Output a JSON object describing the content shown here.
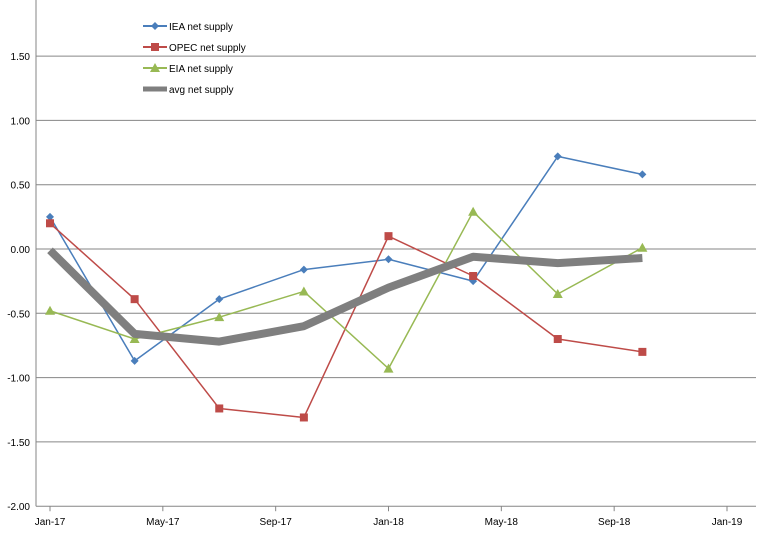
{
  "chart_data": {
    "type": "line",
    "title": "",
    "xlabel": "",
    "ylabel": "",
    "ylim": [
      -2.0,
      2.0
    ],
    "y_ticks": [
      "-2.00",
      "-1.50",
      "-1.00",
      "-0.50",
      "0.00",
      "0.50",
      "1.00",
      "1.50"
    ],
    "y_tick_values": [
      -2.0,
      -1.5,
      -1.0,
      -0.5,
      0.0,
      0.5,
      1.0,
      1.5
    ],
    "x_ticks": [
      "Jan-17",
      "May-17",
      "Sep-17",
      "Jan-18",
      "May-18",
      "Sep-18",
      "Jan-19"
    ],
    "x_tick_months": [
      0,
      4,
      8,
      12,
      16,
      20,
      24
    ],
    "x_months": [
      0,
      3,
      6,
      9,
      12,
      15,
      18,
      21
    ],
    "x": [
      "Jan-17",
      "Apr-17",
      "Jul-17",
      "Oct-17",
      "Jan-18",
      "Apr-18",
      "Jul-18",
      "Oct-18"
    ],
    "grid": true,
    "legend_position": "top-left",
    "series": [
      {
        "name": "IEA net supply",
        "color": "#4a7ebb",
        "marker": "diamond",
        "width": 1.5,
        "values": [
          0.25,
          -0.87,
          -0.39,
          -0.16,
          -0.08,
          -0.25,
          0.72,
          0.58
        ]
      },
      {
        "name": "OPEC net supply",
        "color": "#be4b48",
        "marker": "square",
        "width": 1.5,
        "values": [
          0.2,
          -0.39,
          -1.24,
          -1.31,
          0.1,
          -0.21,
          -0.7,
          -0.8
        ]
      },
      {
        "name": "EIA net supply",
        "color": "#98b954",
        "marker": "triangle",
        "width": 1.5,
        "values": [
          -0.48,
          -0.7,
          -0.53,
          -0.33,
          -0.93,
          0.29,
          -0.35,
          0.01
        ]
      },
      {
        "name": "avg net supply",
        "color": "#7f7f7f",
        "marker": "none",
        "width": 8,
        "values": [
          -0.01,
          -0.66,
          -0.72,
          -0.6,
          -0.3,
          -0.06,
          -0.11,
          -0.07
        ]
      }
    ]
  }
}
